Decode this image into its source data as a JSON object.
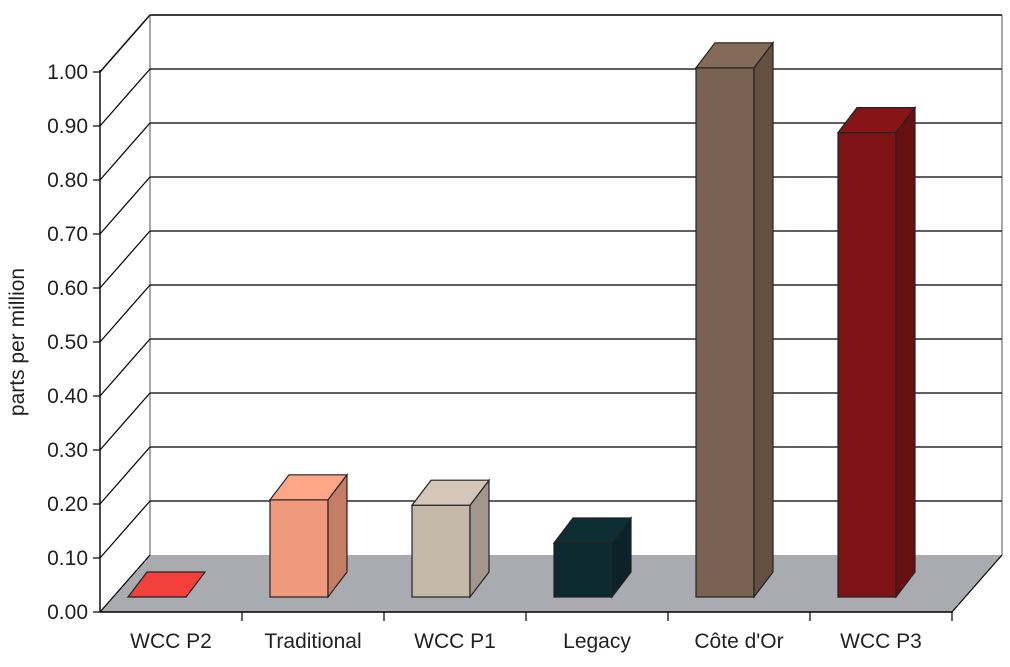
{
  "chart_data": {
    "type": "bar",
    "categories": [
      "WCC P2",
      "Traditional",
      "WCC P1",
      "Legacy",
      "Côte d'Or",
      "WCC P3"
    ],
    "values": [
      0.0,
      0.18,
      0.17,
      0.1,
      0.98,
      0.86
    ],
    "ylabel": "parts per million",
    "xlabel": "",
    "title": "",
    "ylim": [
      0,
      1.0
    ],
    "yticks": [
      "0.00",
      "0.10",
      "0.20",
      "0.30",
      "0.40",
      "0.50",
      "0.60",
      "0.70",
      "0.80",
      "0.90",
      "1.00"
    ],
    "grid": true,
    "style": "3d-column",
    "colors": {
      "bars": [
        "#e23b36",
        "#ef9a7c",
        "#c4b8ab",
        "#0e2a31",
        "#7a6252",
        "#7d1315"
      ],
      "floor": "#a9abb0",
      "gridline": "#000000",
      "wall_edge": "#a6a8ab"
    }
  }
}
